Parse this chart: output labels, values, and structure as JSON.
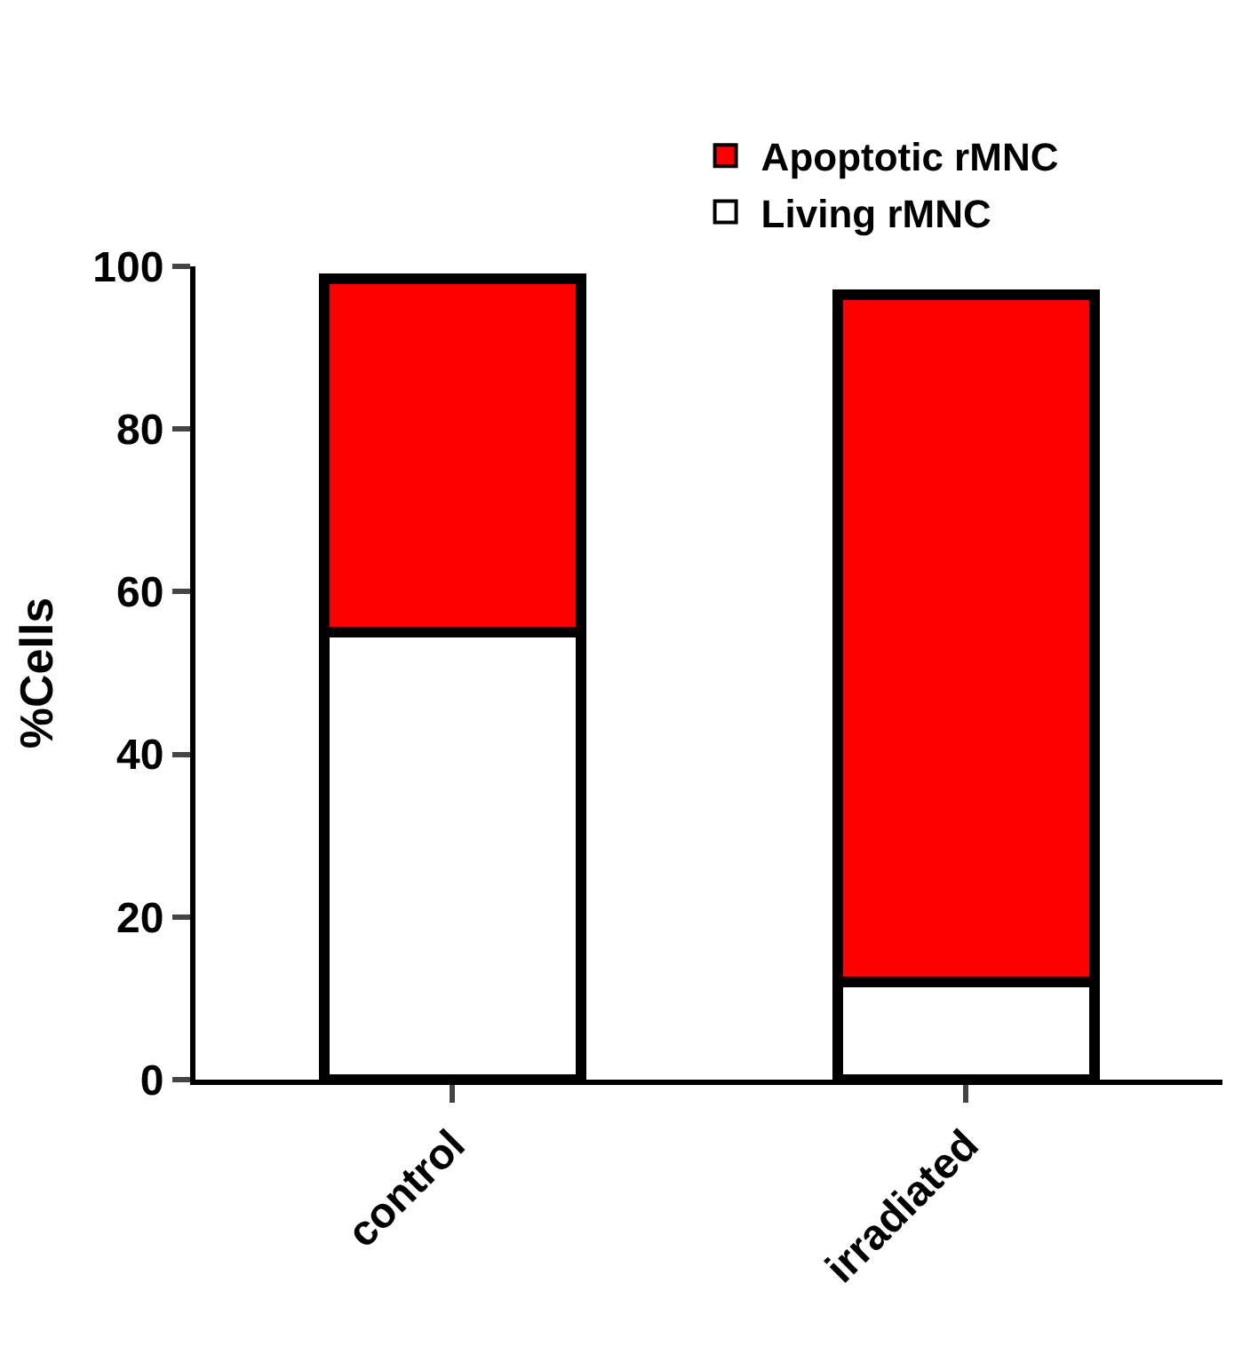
{
  "chart_data": {
    "type": "bar",
    "stacked": true,
    "ylabel": "%Cells",
    "categories": [
      "control",
      "irradiated"
    ],
    "series": [
      {
        "name": "Living rMNC",
        "color": "#ffffff",
        "values": [
          55,
          12
        ]
      },
      {
        "name": "Apoptotic rMNC",
        "color": "#ff0000",
        "values": [
          43.5,
          84.5
        ]
      }
    ],
    "ylim": [
      0,
      100
    ],
    "yticks": [
      0,
      20,
      40,
      60,
      80,
      100
    ],
    "legend": "top right"
  }
}
